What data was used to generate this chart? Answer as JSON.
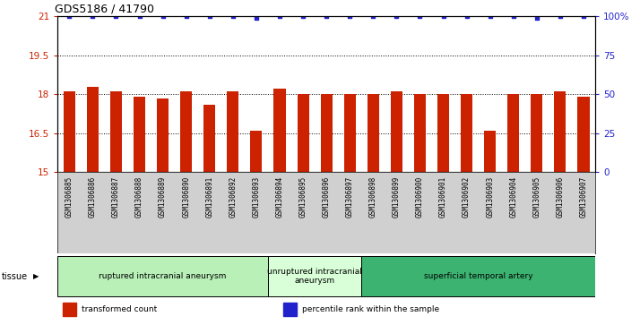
{
  "title": "GDS5186 / 41790",
  "samples": [
    "GSM1306885",
    "GSM1306886",
    "GSM1306887",
    "GSM1306888",
    "GSM1306889",
    "GSM1306890",
    "GSM1306891",
    "GSM1306892",
    "GSM1306893",
    "GSM1306894",
    "GSM1306895",
    "GSM1306896",
    "GSM1306897",
    "GSM1306898",
    "GSM1306899",
    "GSM1306900",
    "GSM1306901",
    "GSM1306902",
    "GSM1306903",
    "GSM1306904",
    "GSM1306905",
    "GSM1306906",
    "GSM1306907"
  ],
  "bar_values": [
    18.1,
    18.3,
    18.1,
    17.9,
    17.85,
    18.1,
    17.6,
    18.1,
    16.6,
    18.2,
    18.0,
    18.0,
    18.0,
    18.0,
    18.1,
    18.0,
    18.0,
    18.0,
    16.6,
    18.0,
    18.0,
    18.1,
    17.9
  ],
  "percentile_values": [
    100,
    100,
    100,
    100,
    100,
    100,
    100,
    100,
    99,
    100,
    100,
    100,
    100,
    100,
    100,
    100,
    100,
    100,
    100,
    100,
    99,
    100,
    100
  ],
  "ylim_left": [
    15,
    21
  ],
  "ylim_right": [
    0,
    100
  ],
  "yticks_left": [
    15,
    16.5,
    18,
    19.5,
    21
  ],
  "ytick_labels_left": [
    "15",
    "16.5",
    "18",
    "19.5",
    "21"
  ],
  "yticks_right": [
    0,
    25,
    50,
    75,
    100
  ],
  "ytick_labels_right": [
    "0",
    "25",
    "50",
    "75",
    "100%"
  ],
  "bar_color": "#cc2200",
  "dot_color": "#2222cc",
  "bg_color": "#ffffff",
  "tick_area_color": "#d0d0d0",
  "groups": [
    {
      "label": "ruptured intracranial aneurysm",
      "start": 0,
      "end": 9,
      "color": "#b8f0b8"
    },
    {
      "label": "unruptured intracranial\naneurysm",
      "start": 9,
      "end": 13,
      "color": "#d8ffd8"
    },
    {
      "label": "superficial temporal artery",
      "start": 13,
      "end": 23,
      "color": "#3cb371"
    }
  ],
  "xlabel_group": "tissue",
  "legend_entries": [
    {
      "color": "#cc2200",
      "label": "transformed count"
    },
    {
      "color": "#2222cc",
      "label": "percentile rank within the sample"
    }
  ]
}
